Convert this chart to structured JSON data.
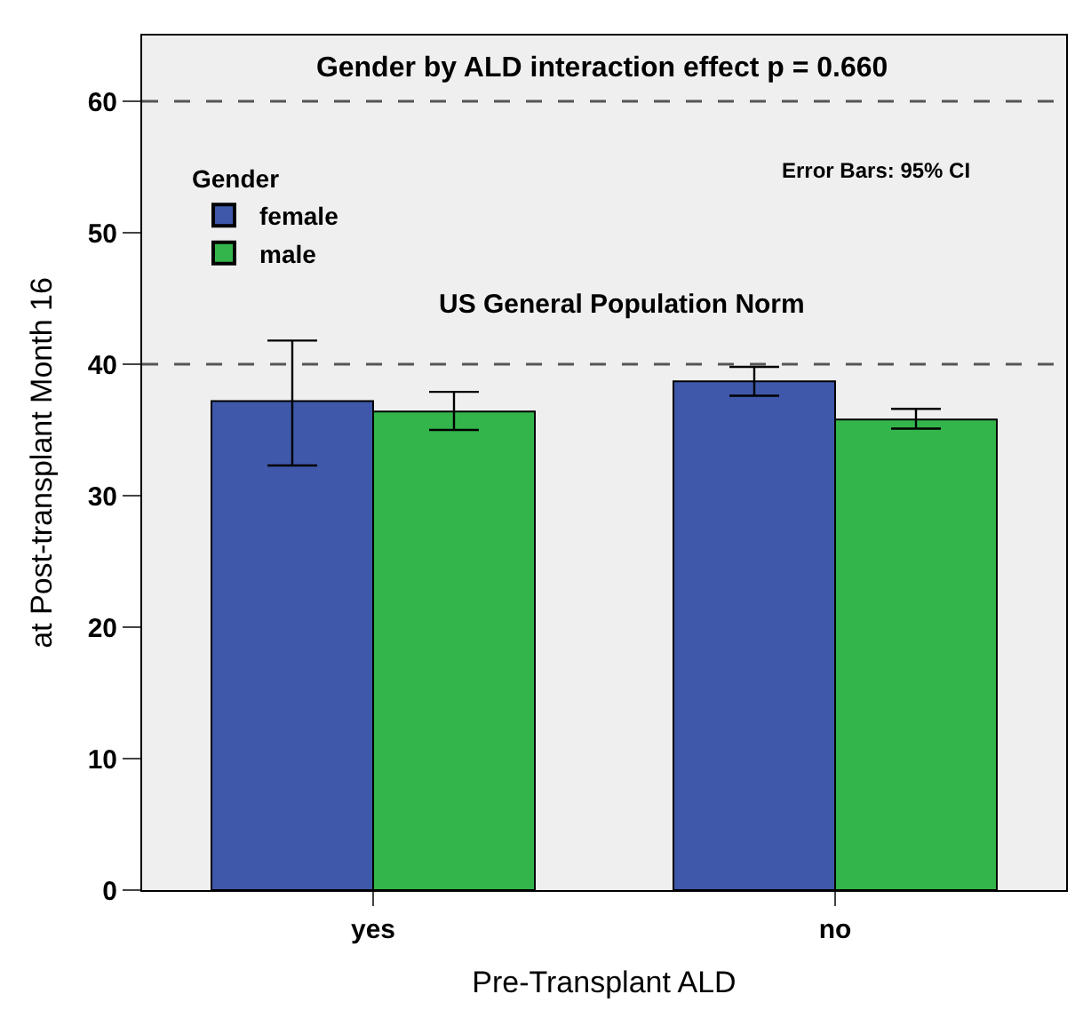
{
  "chart_data": {
    "type": "bar",
    "title": "Gender by ALD interaction effect p = 0.660",
    "xlabel": "Pre-Transplant ALD",
    "ylabel": "at Post-transplant Month 16",
    "legend_title": "Gender",
    "categories": [
      "yes",
      "no"
    ],
    "series": [
      {
        "name": "female",
        "color": "#3f58a9",
        "values": [
          37.2,
          38.7
        ],
        "errors": [
          [
            32.3,
            41.8
          ],
          [
            37.6,
            39.8
          ]
        ]
      },
      {
        "name": "male",
        "color": "#33b54b",
        "values": [
          36.4,
          35.8
        ],
        "errors": [
          [
            35.0,
            37.9
          ],
          [
            35.1,
            36.6
          ]
        ]
      }
    ],
    "ylim": [
      0,
      65
    ],
    "yticks": [
      0,
      10,
      20,
      30,
      40,
      50,
      60
    ],
    "grid": false,
    "legend": "top left",
    "ref_lines": [
      {
        "axis": "y",
        "value": 60,
        "label": null,
        "line_style": "dashed"
      },
      {
        "axis": "y",
        "value": 40,
        "label": "US General Population Norm",
        "line_style": "dashed"
      }
    ],
    "annotations": [
      "Error Bars: 95% CI"
    ]
  }
}
